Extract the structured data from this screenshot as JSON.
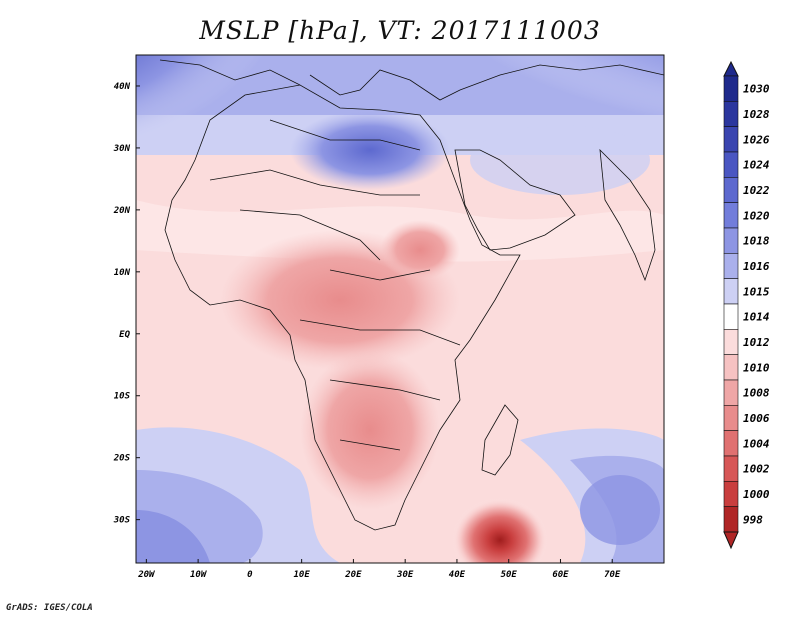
{
  "title": "MSLP [hPa], VT: 2017111003",
  "credit": "GrADS: IGES/COLA",
  "map": {
    "lon_range": [
      -22,
      80
    ],
    "lat_range": [
      -37,
      45
    ],
    "lat_labels": [
      {
        "lat": 40,
        "text": "40N"
      },
      {
        "lat": 30,
        "text": "30N"
      },
      {
        "lat": 20,
        "text": "20N"
      },
      {
        "lat": 10,
        "text": "10N"
      },
      {
        "lat": 0,
        "text": "EQ"
      },
      {
        "lat": -10,
        "text": "10S"
      },
      {
        "lat": -20,
        "text": "20S"
      },
      {
        "lat": -30,
        "text": "30S"
      }
    ],
    "lon_labels": [
      {
        "lon": -20,
        "text": "20W"
      },
      {
        "lon": -10,
        "text": "10W"
      },
      {
        "lon": 0,
        "text": "0"
      },
      {
        "lon": 10,
        "text": "10E"
      },
      {
        "lon": 20,
        "text": "20E"
      },
      {
        "lon": 30,
        "text": "30E"
      },
      {
        "lon": 40,
        "text": "40E"
      },
      {
        "lon": 50,
        "text": "50E"
      },
      {
        "lon": 60,
        "text": "60E"
      },
      {
        "lon": 70,
        "text": "70E"
      }
    ]
  },
  "colorbar": [
    {
      "label": "1030",
      "color": "#1f2a8c"
    },
    {
      "label": "1028",
      "color": "#2b369e"
    },
    {
      "label": "1026",
      "color": "#3a45b0"
    },
    {
      "label": "1024",
      "color": "#4a56c2"
    },
    {
      "label": "1022",
      "color": "#5d69cf"
    },
    {
      "label": "1020",
      "color": "#727ddb"
    },
    {
      "label": "1018",
      "color": "#8d95e3"
    },
    {
      "label": "1016",
      "color": "#aab0ec"
    },
    {
      "label": "1015",
      "color": "#cdd0f4"
    },
    {
      "label": "1014",
      "color": "#ffffff"
    },
    {
      "label": "1012",
      "color": "#fbdcdc"
    },
    {
      "label": "1010",
      "color": "#f6c2c2"
    },
    {
      "label": "1008",
      "color": "#efa6a6"
    },
    {
      "label": "1006",
      "color": "#e88c8c"
    },
    {
      "label": "1004",
      "color": "#e07171"
    },
    {
      "label": "1002",
      "color": "#d75757"
    },
    {
      "label": "1000",
      "color": "#c93e3e"
    },
    {
      "label": "998",
      "color": "#b02626"
    }
  ],
  "colors": {
    "ocean_high": "#6a73d6",
    "ocean_mid": "#aab0ec",
    "neutral": "#fde6e6",
    "land_low": "#efa6a6",
    "low_center": "#b02626"
  }
}
